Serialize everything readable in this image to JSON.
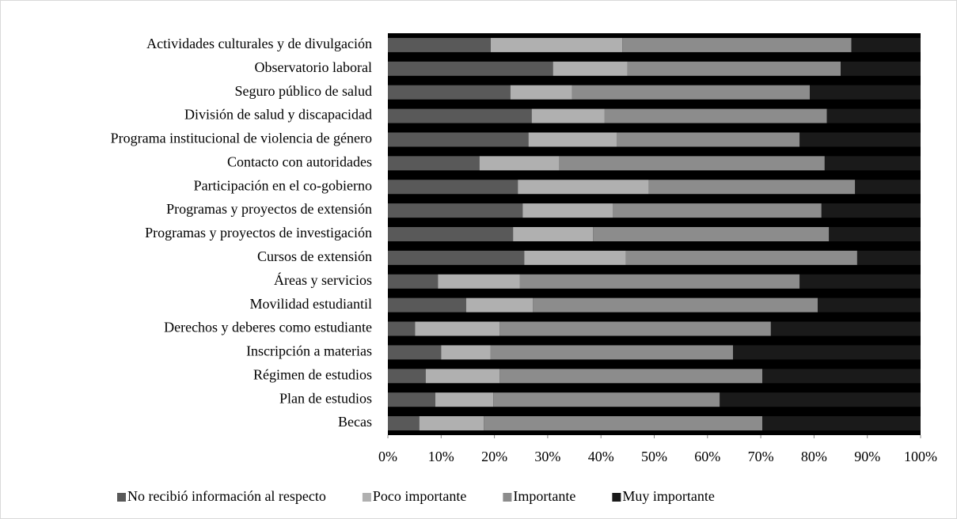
{
  "chart_data": {
    "type": "stacked_bar_horizontal",
    "categories": [
      "Actividades culturales y de divulgación",
      "Observatorio laboral",
      "Seguro público de salud",
      "División de salud y discapacidad",
      "Programa institucional de violencia de género",
      "Contacto con autoridades",
      "Participación en el co-gobierno",
      "Programas y proyectos de extensión",
      "Programas y proyectos de investigación",
      "Cursos de extensión",
      "Áreas y servicios",
      "Movilidad estudiantil",
      "Derechos y deberes como estudiante",
      "Inscripción a materias",
      "Régimen de estudios",
      "Plan de estudios",
      "Becas"
    ],
    "series": [
      {
        "name": "No recibió información al respecto",
        "color": "#595959",
        "values": [
          19.3,
          31,
          23,
          27,
          26.4,
          17.2,
          24.4,
          25.3,
          23.5,
          25.6,
          9.4,
          14.7,
          5.1,
          10,
          7.1,
          8.9,
          5.9
        ]
      },
      {
        "name": "Poco importante",
        "color": "#b0b0b0",
        "values": [
          24.7,
          14,
          11.6,
          13.7,
          16.6,
          15,
          24.6,
          16.9,
          15,
          19.1,
          15.4,
          12.5,
          15.9,
          9.3,
          13.9,
          10.9,
          12.1
        ]
      },
      {
        "name": "Importante",
        "color": "#8c8c8c",
        "values": [
          43,
          40,
          44.6,
          41.7,
          34.3,
          49.8,
          38.7,
          39.2,
          44.3,
          43.4,
          52.5,
          53.5,
          50.9,
          45.5,
          49.3,
          42.5,
          52.3
        ]
      },
      {
        "name": "Muy importante",
        "color": "#1a1a1a",
        "values": [
          13,
          15,
          20.8,
          17.6,
          22.7,
          18,
          12.3,
          18.6,
          17.2,
          11.9,
          22.7,
          19.3,
          28.1,
          35.2,
          29.7,
          37.7,
          29.7
        ]
      }
    ],
    "xlim": [
      0,
      100
    ],
    "xticks": [
      {
        "value": 0,
        "label": "0%"
      },
      {
        "value": 10,
        "label": "10%"
      },
      {
        "value": 20,
        "label": "20%"
      },
      {
        "value": 30,
        "label": "30%"
      },
      {
        "value": 40,
        "label": "40%"
      },
      {
        "value": 50,
        "label": "50%"
      },
      {
        "value": 60,
        "label": "60%"
      },
      {
        "value": 70,
        "label": "70%"
      },
      {
        "value": 80,
        "label": "80%"
      },
      {
        "value": 90,
        "label": "90%"
      },
      {
        "value": 100,
        "label": "100%"
      }
    ],
    "legend": "bottom"
  }
}
